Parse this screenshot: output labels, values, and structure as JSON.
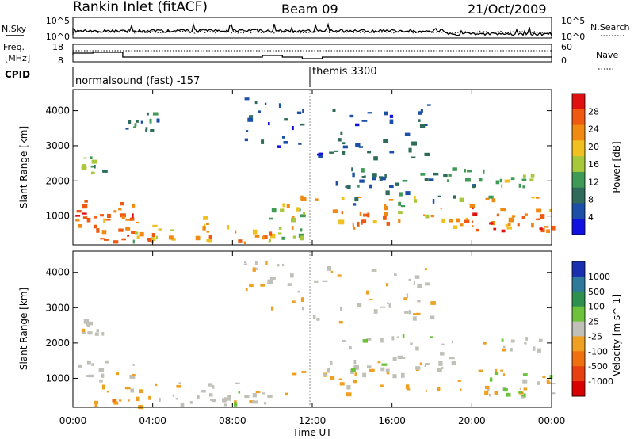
{
  "header": {
    "station": "Rankin Inlet (fitACF)",
    "beam": "Beam 09",
    "date": "21/Oct/2009"
  },
  "nsky_panel": {
    "left_label": "N.Sky",
    "left_ticks": [
      "10^5",
      "10^0"
    ],
    "right_label": "N.Search",
    "right_ticks": [
      "10^5",
      "10^0"
    ]
  },
  "freq_panel": {
    "left_label_line1": "Freq.",
    "left_label_line2": "[MHz]",
    "left_ticks": [
      "18",
      "8"
    ],
    "right_label": "Nave",
    "right_ticks": [
      "60",
      "0"
    ]
  },
  "cpid_panel": {
    "label": "CPID",
    "segments": [
      {
        "start_hour": 0,
        "end_hour": 12,
        "text": "normalsound (fast) -157"
      },
      {
        "start_hour": 12,
        "end_hour": 24,
        "text": "themis 3300"
      }
    ]
  },
  "colors": {
    "power": [
      "#1010e0",
      "#1c4fa8",
      "#2f6b5a",
      "#3f9a55",
      "#a8c83c",
      "#f0c020",
      "#f08a10",
      "#f05a10",
      "#e01010"
    ],
    "velocity": [
      "#1a2fb0",
      "#2f7a9a",
      "#2e8f4f",
      "#6cc23a",
      "#c0c0b8",
      "#f0a020",
      "#f07010",
      "#e84010",
      "#d80000"
    ]
  },
  "x_axis": {
    "label": "Time UT",
    "range": [
      0,
      24
    ],
    "tick_hours": [
      0,
      4,
      8,
      12,
      16,
      20,
      24
    ],
    "tick_labels": [
      "00:00",
      "04:00",
      "08:00",
      "12:00",
      "16:00",
      "20:00",
      "00:00"
    ]
  },
  "chart_data": [
    {
      "type": "heatmap",
      "title": "Power",
      "xlabel": "Time UT",
      "ylabel": "Slant Range [km]",
      "xlim": [
        0,
        24
      ],
      "ylim": [
        180,
        4600
      ],
      "yticks": [
        1000,
        2000,
        3000,
        4000
      ],
      "colorbar": {
        "label": "Power [dB]",
        "tick_labels": [
          "28",
          "24",
          "20",
          "16",
          "12",
          "8",
          "4"
        ],
        "tick_values": [
          28,
          24,
          20,
          16,
          12,
          8,
          4
        ],
        "range": [
          0,
          32
        ]
      },
      "blobs": [
        {
          "t0": 0.0,
          "t1": 3.2,
          "r0": 600,
          "r1": 1500,
          "value": 24
        },
        {
          "t0": 0.0,
          "t1": 3.0,
          "r0": 900,
          "r1": 1200,
          "value": 28
        },
        {
          "t0": 0.3,
          "t1": 1.5,
          "r0": 2200,
          "r1": 2700,
          "value": 14
        },
        {
          "t0": 1.0,
          "t1": 4.0,
          "r0": 250,
          "r1": 700,
          "value": 28
        },
        {
          "t0": 3.0,
          "t1": 5.5,
          "r0": 300,
          "r1": 800,
          "value": 18
        },
        {
          "t0": 5.5,
          "t1": 11.0,
          "r0": 250,
          "r1": 1000,
          "value": 22
        },
        {
          "t0": 9.0,
          "t1": 11.5,
          "r0": 300,
          "r1": 1500,
          "value": 16
        },
        {
          "t0": 10.5,
          "t1": 24.0,
          "r0": 700,
          "r1": 1600,
          "value": 20
        },
        {
          "t0": 12.5,
          "t1": 23.0,
          "r0": 800,
          "r1": 1150,
          "value": 26
        },
        {
          "t0": 20.0,
          "t1": 24.0,
          "r0": 600,
          "r1": 1300,
          "value": 26
        },
        {
          "t0": 13.0,
          "t1": 21.0,
          "r0": 1300,
          "r1": 2400,
          "value": 10
        },
        {
          "t0": 14.0,
          "t1": 19.0,
          "r0": 2000,
          "r1": 2400,
          "value": 8
        },
        {
          "t0": 20.5,
          "t1": 23.5,
          "r0": 1800,
          "r1": 2200,
          "value": 14
        },
        {
          "t0": 12.0,
          "t1": 18.0,
          "r0": 2600,
          "r1": 4200,
          "value": 6
        },
        {
          "t0": 2.5,
          "t1": 4.5,
          "r0": 3400,
          "r1": 4200,
          "value": 8
        },
        {
          "t0": 8.5,
          "t1": 11.5,
          "r0": 3000,
          "r1": 4400,
          "value": 6
        }
      ]
    },
    {
      "type": "heatmap",
      "title": "Velocity",
      "xlabel": "Time UT",
      "ylabel": "Slant Range [km]",
      "xlim": [
        0,
        24
      ],
      "ylim": [
        180,
        4600
      ],
      "yticks": [
        1000,
        2000,
        3000,
        4000
      ],
      "colorbar": {
        "label": "Velocity [m s^-1]",
        "tick_labels": [
          "1000",
          "500",
          "100",
          "25",
          "-25",
          "-100",
          "-500",
          "-1000"
        ],
        "tick_values": [
          1000,
          500,
          100,
          25,
          -25,
          -100,
          -500,
          -1000
        ],
        "range": [
          -1200,
          1200
        ]
      },
      "blobs": [
        {
          "t0": 0.0,
          "t1": 3.0,
          "r0": 700,
          "r1": 1600,
          "value": -150
        },
        {
          "t0": 0.3,
          "t1": 1.5,
          "r0": 2200,
          "r1": 2700,
          "value": 0
        },
        {
          "t0": 1.0,
          "t1": 4.0,
          "r0": 250,
          "r1": 700,
          "value": -300
        },
        {
          "t0": 4.0,
          "t1": 11.0,
          "r0": 250,
          "r1": 900,
          "value": -80
        },
        {
          "t0": 6.0,
          "t1": 10.0,
          "r0": 300,
          "r1": 700,
          "value": 60
        },
        {
          "t0": 10.5,
          "t1": 24.0,
          "r0": 600,
          "r1": 1300,
          "value": -250
        },
        {
          "t0": 12.5,
          "t1": 20.0,
          "r0": 1100,
          "r1": 1600,
          "value": 0
        },
        {
          "t0": 13.5,
          "t1": 19.0,
          "r0": 1300,
          "r1": 2300,
          "value": 40
        },
        {
          "t0": 20.0,
          "t1": 24.0,
          "r0": 500,
          "r1": 1200,
          "value": 120
        },
        {
          "t0": 20.5,
          "t1": 23.5,
          "r0": 1800,
          "r1": 2200,
          "value": 0
        },
        {
          "t0": 12.0,
          "t1": 18.0,
          "r0": 2600,
          "r1": 4200,
          "value": -60
        },
        {
          "t0": 8.5,
          "t1": 11.5,
          "r0": 3000,
          "r1": 4400,
          "value": -100
        }
      ]
    }
  ]
}
